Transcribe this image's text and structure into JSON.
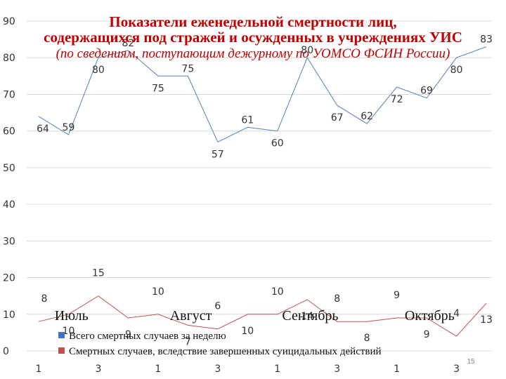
{
  "chart_data": {
    "type": "line",
    "title_lines": [
      "Показатели еженедельной смертности лиц,",
      "содержащихся под стражей и осужденных в учреждениях УИС",
      "(по сведениям, поступающим дежурному по УОМСО ФСИН России)"
    ],
    "ylim": [
      0,
      90
    ],
    "yticks": [
      0,
      10,
      20,
      30,
      40,
      50,
      60,
      70,
      80,
      90
    ],
    "x_tick_labels": [
      "1",
      "3",
      "1",
      "3",
      "1",
      "3",
      "1",
      "3"
    ],
    "month_labels": [
      "Июль",
      "Август",
      "Сентябрь",
      "Октябрь"
    ],
    "series": [
      {
        "name": "Всего смертных случаев за неделю",
        "color": "#4f81bd",
        "values": [
          64,
          59,
          80,
          82,
          75,
          75,
          57,
          61,
          60,
          80,
          67,
          62,
          72,
          69,
          80,
          83
        ]
      },
      {
        "name": "Смертных случаев, вследствие завершенных суицидальных действий",
        "color": "#c0504d",
        "values": [
          8,
          10,
          15,
          9,
          10,
          7,
          6,
          10,
          10,
          14,
          8,
          8,
          9,
          9,
          4,
          13
        ]
      }
    ],
    "legend_marker_colors": [
      "#4472c4",
      "#c0504d"
    ]
  },
  "page_number": "15"
}
